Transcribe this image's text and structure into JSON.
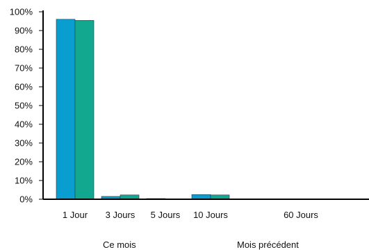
{
  "chart_data": {
    "type": "bar",
    "categories": [
      "1 Jour",
      "3 Jours",
      "5 Jours",
      "10 Jours",
      "60 Jours"
    ],
    "series": [
      {
        "name": "Ce mois",
        "color": "#0a9dd0",
        "values": [
          96,
          1.5,
          0.3,
          2.5,
          0
        ]
      },
      {
        "name": "Mois précédent",
        "color": "#12a890",
        "values": [
          95.4,
          2.3,
          0,
          2.3,
          0
        ]
      }
    ],
    "y_ticks": [
      "0%",
      "10%",
      "20%",
      "30%",
      "40%",
      "50%",
      "60%",
      "70%",
      "80%",
      "90%",
      "100%"
    ],
    "ylim": [
      0,
      100
    ],
    "grid": false,
    "legend_position": "bottom"
  }
}
